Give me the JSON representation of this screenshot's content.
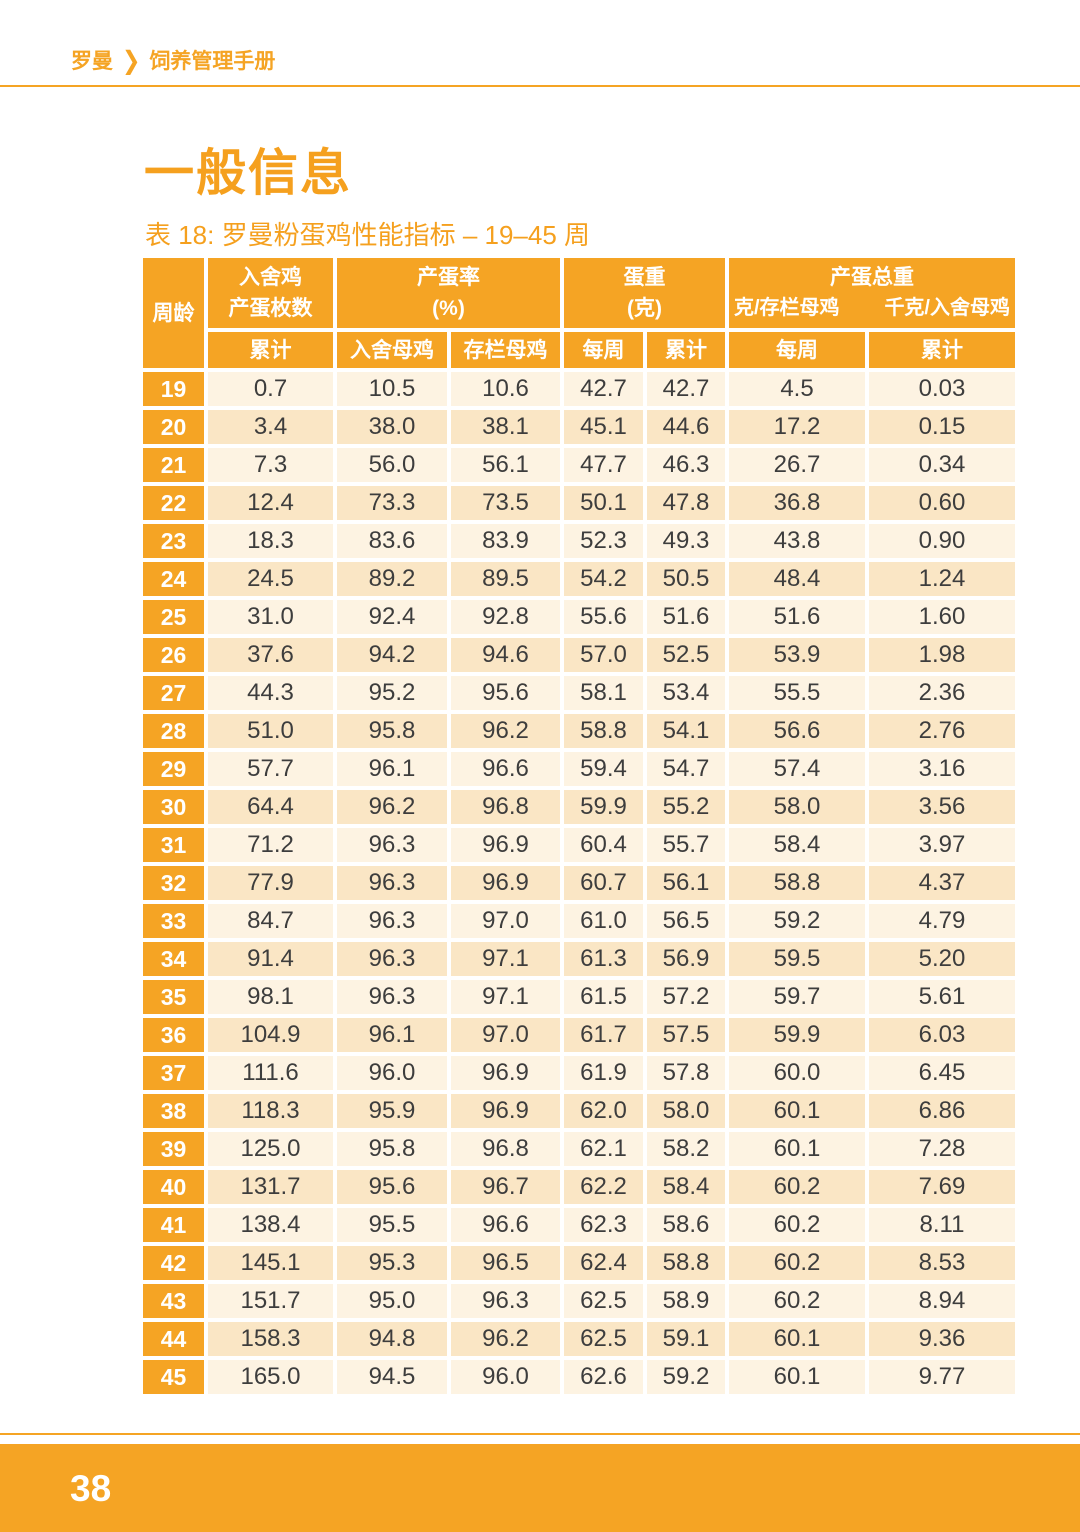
{
  "colors": {
    "accent_orange": "#F5A424",
    "title_orange": "#F5A01E",
    "row_light": "#FDF3E2",
    "row_dark": "#FAE6C5",
    "data_text": "#3D3D3D"
  },
  "breadcrumb": {
    "brand": "罗曼",
    "chevron": "❯",
    "manual": "饲养管理手册"
  },
  "page": {
    "title": "一般信息",
    "table_caption": "表 18: 罗曼粉蛋鸡性能指标 – 19–45 周",
    "page_number": "38"
  },
  "table": {
    "header": {
      "week": "周龄",
      "groups": [
        {
          "line1": "入舍鸡",
          "line2": "产蛋枚数"
        },
        {
          "line1": "产蛋率",
          "line2": "(%)"
        },
        {
          "line1": "蛋重",
          "line2": "(克)"
        },
        {
          "line1": "产蛋总重",
          "line2a": "克/存栏母鸡",
          "line2b": "千克/入舍母鸡"
        }
      ],
      "subs": [
        "累计",
        "入舍母鸡",
        "存栏母鸡",
        "每周",
        "累计",
        "每周",
        "累计"
      ]
    },
    "rows": [
      [
        "19",
        "0.7",
        "10.5",
        "10.6",
        "42.7",
        "42.7",
        "4.5",
        "0.03"
      ],
      [
        "20",
        "3.4",
        "38.0",
        "38.1",
        "45.1",
        "44.6",
        "17.2",
        "0.15"
      ],
      [
        "21",
        "7.3",
        "56.0",
        "56.1",
        "47.7",
        "46.3",
        "26.7",
        "0.34"
      ],
      [
        "22",
        "12.4",
        "73.3",
        "73.5",
        "50.1",
        "47.8",
        "36.8",
        "0.60"
      ],
      [
        "23",
        "18.3",
        "83.6",
        "83.9",
        "52.3",
        "49.3",
        "43.8",
        "0.90"
      ],
      [
        "24",
        "24.5",
        "89.2",
        "89.5",
        "54.2",
        "50.5",
        "48.4",
        "1.24"
      ],
      [
        "25",
        "31.0",
        "92.4",
        "92.8",
        "55.6",
        "51.6",
        "51.6",
        "1.60"
      ],
      [
        "26",
        "37.6",
        "94.2",
        "94.6",
        "57.0",
        "52.5",
        "53.9",
        "1.98"
      ],
      [
        "27",
        "44.3",
        "95.2",
        "95.6",
        "58.1",
        "53.4",
        "55.5",
        "2.36"
      ],
      [
        "28",
        "51.0",
        "95.8",
        "96.2",
        "58.8",
        "54.1",
        "56.6",
        "2.76"
      ],
      [
        "29",
        "57.7",
        "96.1",
        "96.6",
        "59.4",
        "54.7",
        "57.4",
        "3.16"
      ],
      [
        "30",
        "64.4",
        "96.2",
        "96.8",
        "59.9",
        "55.2",
        "58.0",
        "3.56"
      ],
      [
        "31",
        "71.2",
        "96.3",
        "96.9",
        "60.4",
        "55.7",
        "58.4",
        "3.97"
      ],
      [
        "32",
        "77.9",
        "96.3",
        "96.9",
        "60.7",
        "56.1",
        "58.8",
        "4.37"
      ],
      [
        "33",
        "84.7",
        "96.3",
        "97.0",
        "61.0",
        "56.5",
        "59.2",
        "4.79"
      ],
      [
        "34",
        "91.4",
        "96.3",
        "97.1",
        "61.3",
        "56.9",
        "59.5",
        "5.20"
      ],
      [
        "35",
        "98.1",
        "96.3",
        "97.1",
        "61.5",
        "57.2",
        "59.7",
        "5.61"
      ],
      [
        "36",
        "104.9",
        "96.1",
        "97.0",
        "61.7",
        "57.5",
        "59.9",
        "6.03"
      ],
      [
        "37",
        "111.6",
        "96.0",
        "96.9",
        "61.9",
        "57.8",
        "60.0",
        "6.45"
      ],
      [
        "38",
        "118.3",
        "95.9",
        "96.9",
        "62.0",
        "58.0",
        "60.1",
        "6.86"
      ],
      [
        "39",
        "125.0",
        "95.8",
        "96.8",
        "62.1",
        "58.2",
        "60.1",
        "7.28"
      ],
      [
        "40",
        "131.7",
        "95.6",
        "96.7",
        "62.2",
        "58.4",
        "60.2",
        "7.69"
      ],
      [
        "41",
        "138.4",
        "95.5",
        "96.6",
        "62.3",
        "58.6",
        "60.2",
        "8.11"
      ],
      [
        "42",
        "145.1",
        "95.3",
        "96.5",
        "62.4",
        "58.8",
        "60.2",
        "8.53"
      ],
      [
        "43",
        "151.7",
        "95.0",
        "96.3",
        "62.5",
        "58.9",
        "60.2",
        "8.94"
      ],
      [
        "44",
        "158.3",
        "94.8",
        "96.2",
        "62.5",
        "59.1",
        "60.1",
        "9.36"
      ],
      [
        "45",
        "165.0",
        "94.5",
        "96.0",
        "62.6",
        "59.2",
        "60.1",
        "9.77"
      ]
    ]
  }
}
